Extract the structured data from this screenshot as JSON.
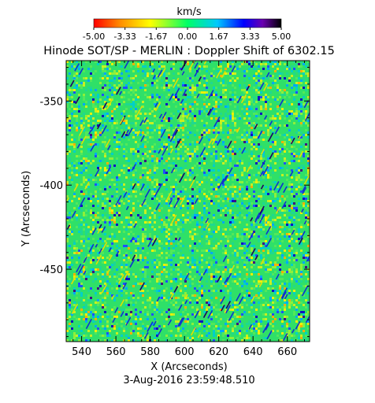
{
  "chart_data": {
    "type": "heatmap",
    "title": "Hinode SOT/SP - MERLIN : Doppler Shift of 6302.15",
    "colorbar": {
      "label": "km/s",
      "range": [
        -5.0,
        5.0
      ],
      "tick_labels": [
        "-5.00",
        "-3.33",
        "-1.67",
        "0.00",
        "1.67",
        "3.33",
        "5.00"
      ],
      "colors": [
        "#ff0000",
        "#ff8c00",
        "#ffff00",
        "#00ff66",
        "#00c8ff",
        "#0000ff",
        "#6a00b0",
        "#000000"
      ]
    },
    "xlabel": "X (Arcseconds)",
    "ylabel": "Y (Arcseconds)",
    "xlim": [
      531,
      673
    ],
    "ylim": [
      -493,
      -326
    ],
    "x_ticks": [
      "540",
      "560",
      "580",
      "600",
      "620",
      "640",
      "660"
    ],
    "x_tick_values": [
      540,
      560,
      580,
      600,
      620,
      640,
      660
    ],
    "y_ticks": [
      "-350",
      "-400",
      "-450"
    ],
    "y_tick_values": [
      -350,
      -400,
      -450
    ],
    "dominant_value_description_free": null,
    "footer": "3-Aug-2016 23:59:48.510"
  }
}
